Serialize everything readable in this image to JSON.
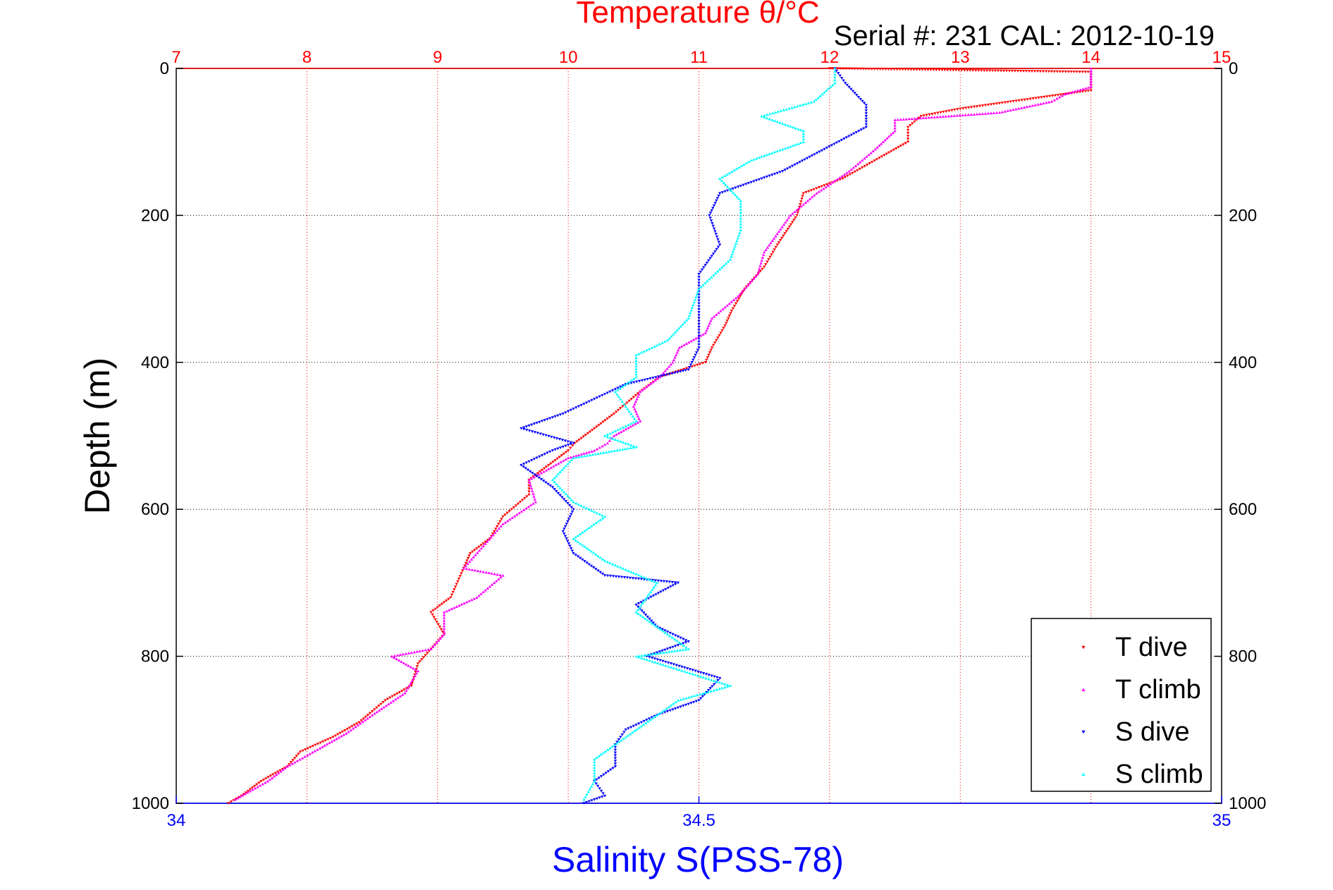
{
  "chart_data": {
    "type": "scatter",
    "title": "Temperature θ/°C",
    "subtitle": "Serial #: 231  CAL: 2012-10-19",
    "xlabel": "Salinity S(PSS-78)",
    "ylabel": "Depth (m)",
    "top_axis": {
      "label": "Temperature θ/°C",
      "range": [
        7,
        15
      ],
      "ticks": [
        "7",
        "8",
        "9",
        "10",
        "11",
        "12",
        "13",
        "14",
        "15"
      ],
      "color": "#ff0000"
    },
    "bottom_axis": {
      "label": "Salinity S(PSS-78)",
      "range": [
        34,
        35
      ],
      "ticks": [
        "34",
        "34.5",
        "35"
      ],
      "color": "#0000ff"
    },
    "depth_axis": {
      "range": [
        0,
        1000
      ],
      "reversed": true,
      "ticks": [
        "0",
        "200",
        "400",
        "600",
        "800",
        "1000"
      ]
    },
    "grid": true,
    "legend_placement": "bottom-right",
    "series": [
      {
        "name": "T dive",
        "axis": "temperature",
        "marker": "down-triangle",
        "color": "#ff0000",
        "points": [
          [
            12,
            0
          ],
          [
            14,
            5
          ],
          [
            14,
            30
          ],
          [
            13.6,
            40
          ],
          [
            13.0,
            55
          ],
          [
            12.7,
            65
          ],
          [
            12.6,
            80
          ],
          [
            12.6,
            100
          ],
          [
            12.4,
            120
          ],
          [
            12.1,
            150
          ],
          [
            11.8,
            170
          ],
          [
            11.75,
            200
          ],
          [
            11.6,
            240
          ],
          [
            11.5,
            270
          ],
          [
            11.35,
            300
          ],
          [
            11.25,
            330
          ],
          [
            11.2,
            350
          ],
          [
            11.1,
            380
          ],
          [
            11.05,
            400
          ],
          [
            10.7,
            420
          ],
          [
            10.55,
            440
          ],
          [
            10.35,
            470
          ],
          [
            10.2,
            490
          ],
          [
            10.05,
            510
          ],
          [
            10.0,
            520
          ],
          [
            9.85,
            540
          ],
          [
            9.7,
            560
          ],
          [
            9.7,
            580
          ],
          [
            9.5,
            610
          ],
          [
            9.4,
            640
          ],
          [
            9.25,
            660
          ],
          [
            9.2,
            680
          ],
          [
            9.1,
            720
          ],
          [
            8.95,
            740
          ],
          [
            9.05,
            770
          ],
          [
            8.95,
            790
          ],
          [
            8.85,
            810
          ],
          [
            8.8,
            840
          ],
          [
            8.6,
            860
          ],
          [
            8.4,
            890
          ],
          [
            8.2,
            910
          ],
          [
            7.95,
            930
          ],
          [
            7.85,
            950
          ],
          [
            7.65,
            970
          ],
          [
            7.5,
            990
          ],
          [
            7.4,
            1000
          ]
        ]
      },
      {
        "name": "T climb",
        "axis": "temperature",
        "marker": "up-triangle",
        "color": "#ff00ff",
        "points": [
          [
            14,
            0
          ],
          [
            14,
            25
          ],
          [
            13.8,
            35
          ],
          [
            13.7,
            45
          ],
          [
            13.3,
            60
          ],
          [
            12.5,
            70
          ],
          [
            12.5,
            85
          ],
          [
            12.35,
            110
          ],
          [
            12.15,
            140
          ],
          [
            11.9,
            170
          ],
          [
            11.7,
            200
          ],
          [
            11.5,
            250
          ],
          [
            11.45,
            280
          ],
          [
            11.3,
            310
          ],
          [
            11.1,
            340
          ],
          [
            11.05,
            360
          ],
          [
            10.85,
            380
          ],
          [
            10.8,
            400
          ],
          [
            10.7,
            420
          ],
          [
            10.55,
            440
          ],
          [
            10.5,
            460
          ],
          [
            10.55,
            480
          ],
          [
            10.35,
            500
          ],
          [
            10.3,
            510
          ],
          [
            10.2,
            520
          ],
          [
            10.0,
            530
          ],
          [
            9.7,
            560
          ],
          [
            9.75,
            590
          ],
          [
            9.5,
            620
          ],
          [
            9.35,
            650
          ],
          [
            9.2,
            680
          ],
          [
            9.5,
            690
          ],
          [
            9.3,
            720
          ],
          [
            9.05,
            740
          ],
          [
            9.05,
            770
          ],
          [
            8.95,
            790
          ],
          [
            8.65,
            800
          ],
          [
            8.85,
            820
          ],
          [
            8.75,
            850
          ],
          [
            8.5,
            880
          ],
          [
            8.3,
            905
          ],
          [
            8.1,
            925
          ],
          [
            7.85,
            950
          ],
          [
            7.7,
            970
          ],
          [
            7.45,
            995
          ]
        ]
      },
      {
        "name": "S dive",
        "axis": "salinity",
        "marker": "down-triangle",
        "color": "#0000ff",
        "points": [
          [
            34.63,
            0
          ],
          [
            34.64,
            20
          ],
          [
            34.66,
            50
          ],
          [
            34.66,
            80
          ],
          [
            34.62,
            110
          ],
          [
            34.58,
            140
          ],
          [
            34.52,
            170
          ],
          [
            34.51,
            200
          ],
          [
            34.52,
            240
          ],
          [
            34.5,
            280
          ],
          [
            34.5,
            300
          ],
          [
            34.5,
            340
          ],
          [
            34.5,
            380
          ],
          [
            34.49,
            410
          ],
          [
            34.43,
            430
          ],
          [
            34.4,
            450
          ],
          [
            34.37,
            470
          ],
          [
            34.33,
            490
          ],
          [
            34.38,
            510
          ],
          [
            34.36,
            520
          ],
          [
            34.33,
            540
          ],
          [
            34.36,
            570
          ],
          [
            34.38,
            600
          ],
          [
            34.37,
            630
          ],
          [
            34.38,
            660
          ],
          [
            34.41,
            690
          ],
          [
            34.48,
            700
          ],
          [
            34.44,
            730
          ],
          [
            34.46,
            760
          ],
          [
            34.49,
            780
          ],
          [
            34.45,
            800
          ],
          [
            34.52,
            830
          ],
          [
            34.5,
            860
          ],
          [
            34.46,
            880
          ],
          [
            34.43,
            900
          ],
          [
            34.42,
            920
          ],
          [
            34.42,
            950
          ],
          [
            34.4,
            970
          ],
          [
            34.41,
            990
          ],
          [
            34.39,
            1000
          ]
        ]
      },
      {
        "name": "S climb",
        "axis": "salinity",
        "marker": "up-triangle",
        "color": "#00ffff",
        "points": [
          [
            34.63,
            0
          ],
          [
            34.63,
            20
          ],
          [
            34.61,
            45
          ],
          [
            34.56,
            65
          ],
          [
            34.6,
            85
          ],
          [
            34.6,
            100
          ],
          [
            34.55,
            125
          ],
          [
            34.52,
            150
          ],
          [
            34.54,
            180
          ],
          [
            34.54,
            220
          ],
          [
            34.53,
            260
          ],
          [
            34.5,
            300
          ],
          [
            34.49,
            340
          ],
          [
            34.47,
            370
          ],
          [
            34.44,
            390
          ],
          [
            34.44,
            420
          ],
          [
            34.42,
            440
          ],
          [
            34.43,
            460
          ],
          [
            34.44,
            480
          ],
          [
            34.41,
            500
          ],
          [
            34.44,
            515
          ],
          [
            34.38,
            530
          ],
          [
            34.36,
            560
          ],
          [
            34.38,
            590
          ],
          [
            34.41,
            610
          ],
          [
            34.38,
            640
          ],
          [
            34.41,
            670
          ],
          [
            34.46,
            700
          ],
          [
            34.44,
            740
          ],
          [
            34.47,
            770
          ],
          [
            34.49,
            790
          ],
          [
            34.44,
            800
          ],
          [
            34.53,
            840
          ],
          [
            34.48,
            860
          ],
          [
            34.46,
            880
          ],
          [
            34.43,
            910
          ],
          [
            34.4,
            940
          ],
          [
            34.4,
            970
          ],
          [
            34.39,
            995
          ]
        ]
      }
    ]
  }
}
